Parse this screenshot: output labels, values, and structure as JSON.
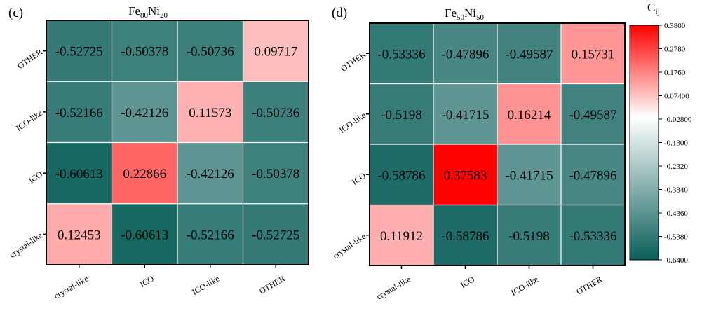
{
  "colorbar": {
    "label": "C",
    "label_sub": "ij",
    "range": [
      -0.64,
      0.38
    ],
    "ticks": [
      "0.3800",
      "0.2780",
      "0.1760",
      "0.07400",
      "-0.02800",
      "-0.1300",
      "-0.2320",
      "-0.3340",
      "-0.4360",
      "-0.5380",
      "-0.6400"
    ],
    "colors": {
      "low": "#0a5e59",
      "mid": "#ffffff",
      "high": "#ff0000"
    }
  },
  "chart_data": [
    {
      "type": "heatmap",
      "panel": "(c)",
      "title": {
        "base1": "Fe",
        "sub1": "80",
        "base2": "Ni",
        "sub2": "20"
      },
      "categories_x": [
        "crystal-like",
        "ICO",
        "ICO-like",
        "OTHER"
      ],
      "categories_y": [
        "crystal-like",
        "ICO",
        "ICO-like",
        "OTHER"
      ],
      "rows": [
        {
          "y": "OTHER",
          "values": [
            -0.52725,
            -0.50378,
            -0.50736,
            0.09717
          ],
          "labels": [
            "-0.52725",
            "-0.50378",
            "-0.50736",
            "0.09717"
          ]
        },
        {
          "y": "ICO-like",
          "values": [
            -0.52166,
            -0.42126,
            0.11573,
            -0.50736
          ],
          "labels": [
            "-0.52166",
            "-0.42126",
            "0.11573",
            "-0.50736"
          ]
        },
        {
          "y": "ICO",
          "values": [
            -0.60613,
            0.22866,
            -0.42126,
            -0.50378
          ],
          "labels": [
            "-0.60613",
            "0.22866",
            "-0.42126",
            "-0.50378"
          ]
        },
        {
          "y": "crystal-like",
          "values": [
            0.12453,
            -0.60613,
            -0.52166,
            -0.52725
          ],
          "labels": [
            "0.12453",
            "-0.60613",
            "-0.52166",
            "-0.52725"
          ]
        }
      ]
    },
    {
      "type": "heatmap",
      "panel": "(d)",
      "title": {
        "base1": "Fe",
        "sub1": "50",
        "base2": "Ni",
        "sub2": "50"
      },
      "categories_x": [
        "crystal-like",
        "ICO",
        "ICO-like",
        "OTHER"
      ],
      "categories_y": [
        "crystal-like",
        "ICO",
        "ICO-like",
        "OTHER"
      ],
      "rows": [
        {
          "y": "OTHER",
          "values": [
            -0.53336,
            -0.47896,
            -0.49587,
            0.15731
          ],
          "labels": [
            "-0.53336",
            "-0.47896",
            "-0.49587",
            "0.15731"
          ]
        },
        {
          "y": "ICO-like",
          "values": [
            -0.5198,
            -0.41715,
            0.16214,
            -0.49587
          ],
          "labels": [
            "-0.5198",
            "-0.41715",
            "0.16214",
            "-0.49587"
          ]
        },
        {
          "y": "ICO",
          "values": [
            -0.58786,
            0.37583,
            -0.41715,
            -0.47896
          ],
          "labels": [
            "-0.58786",
            "0.37583",
            "-0.41715",
            "-0.47896"
          ]
        },
        {
          "y": "crystal-like",
          "values": [
            0.11912,
            -0.58786,
            -0.5198,
            -0.53336
          ],
          "labels": [
            "0.11912",
            "-0.58786",
            "-0.5198",
            "-0.53336"
          ]
        }
      ]
    }
  ]
}
